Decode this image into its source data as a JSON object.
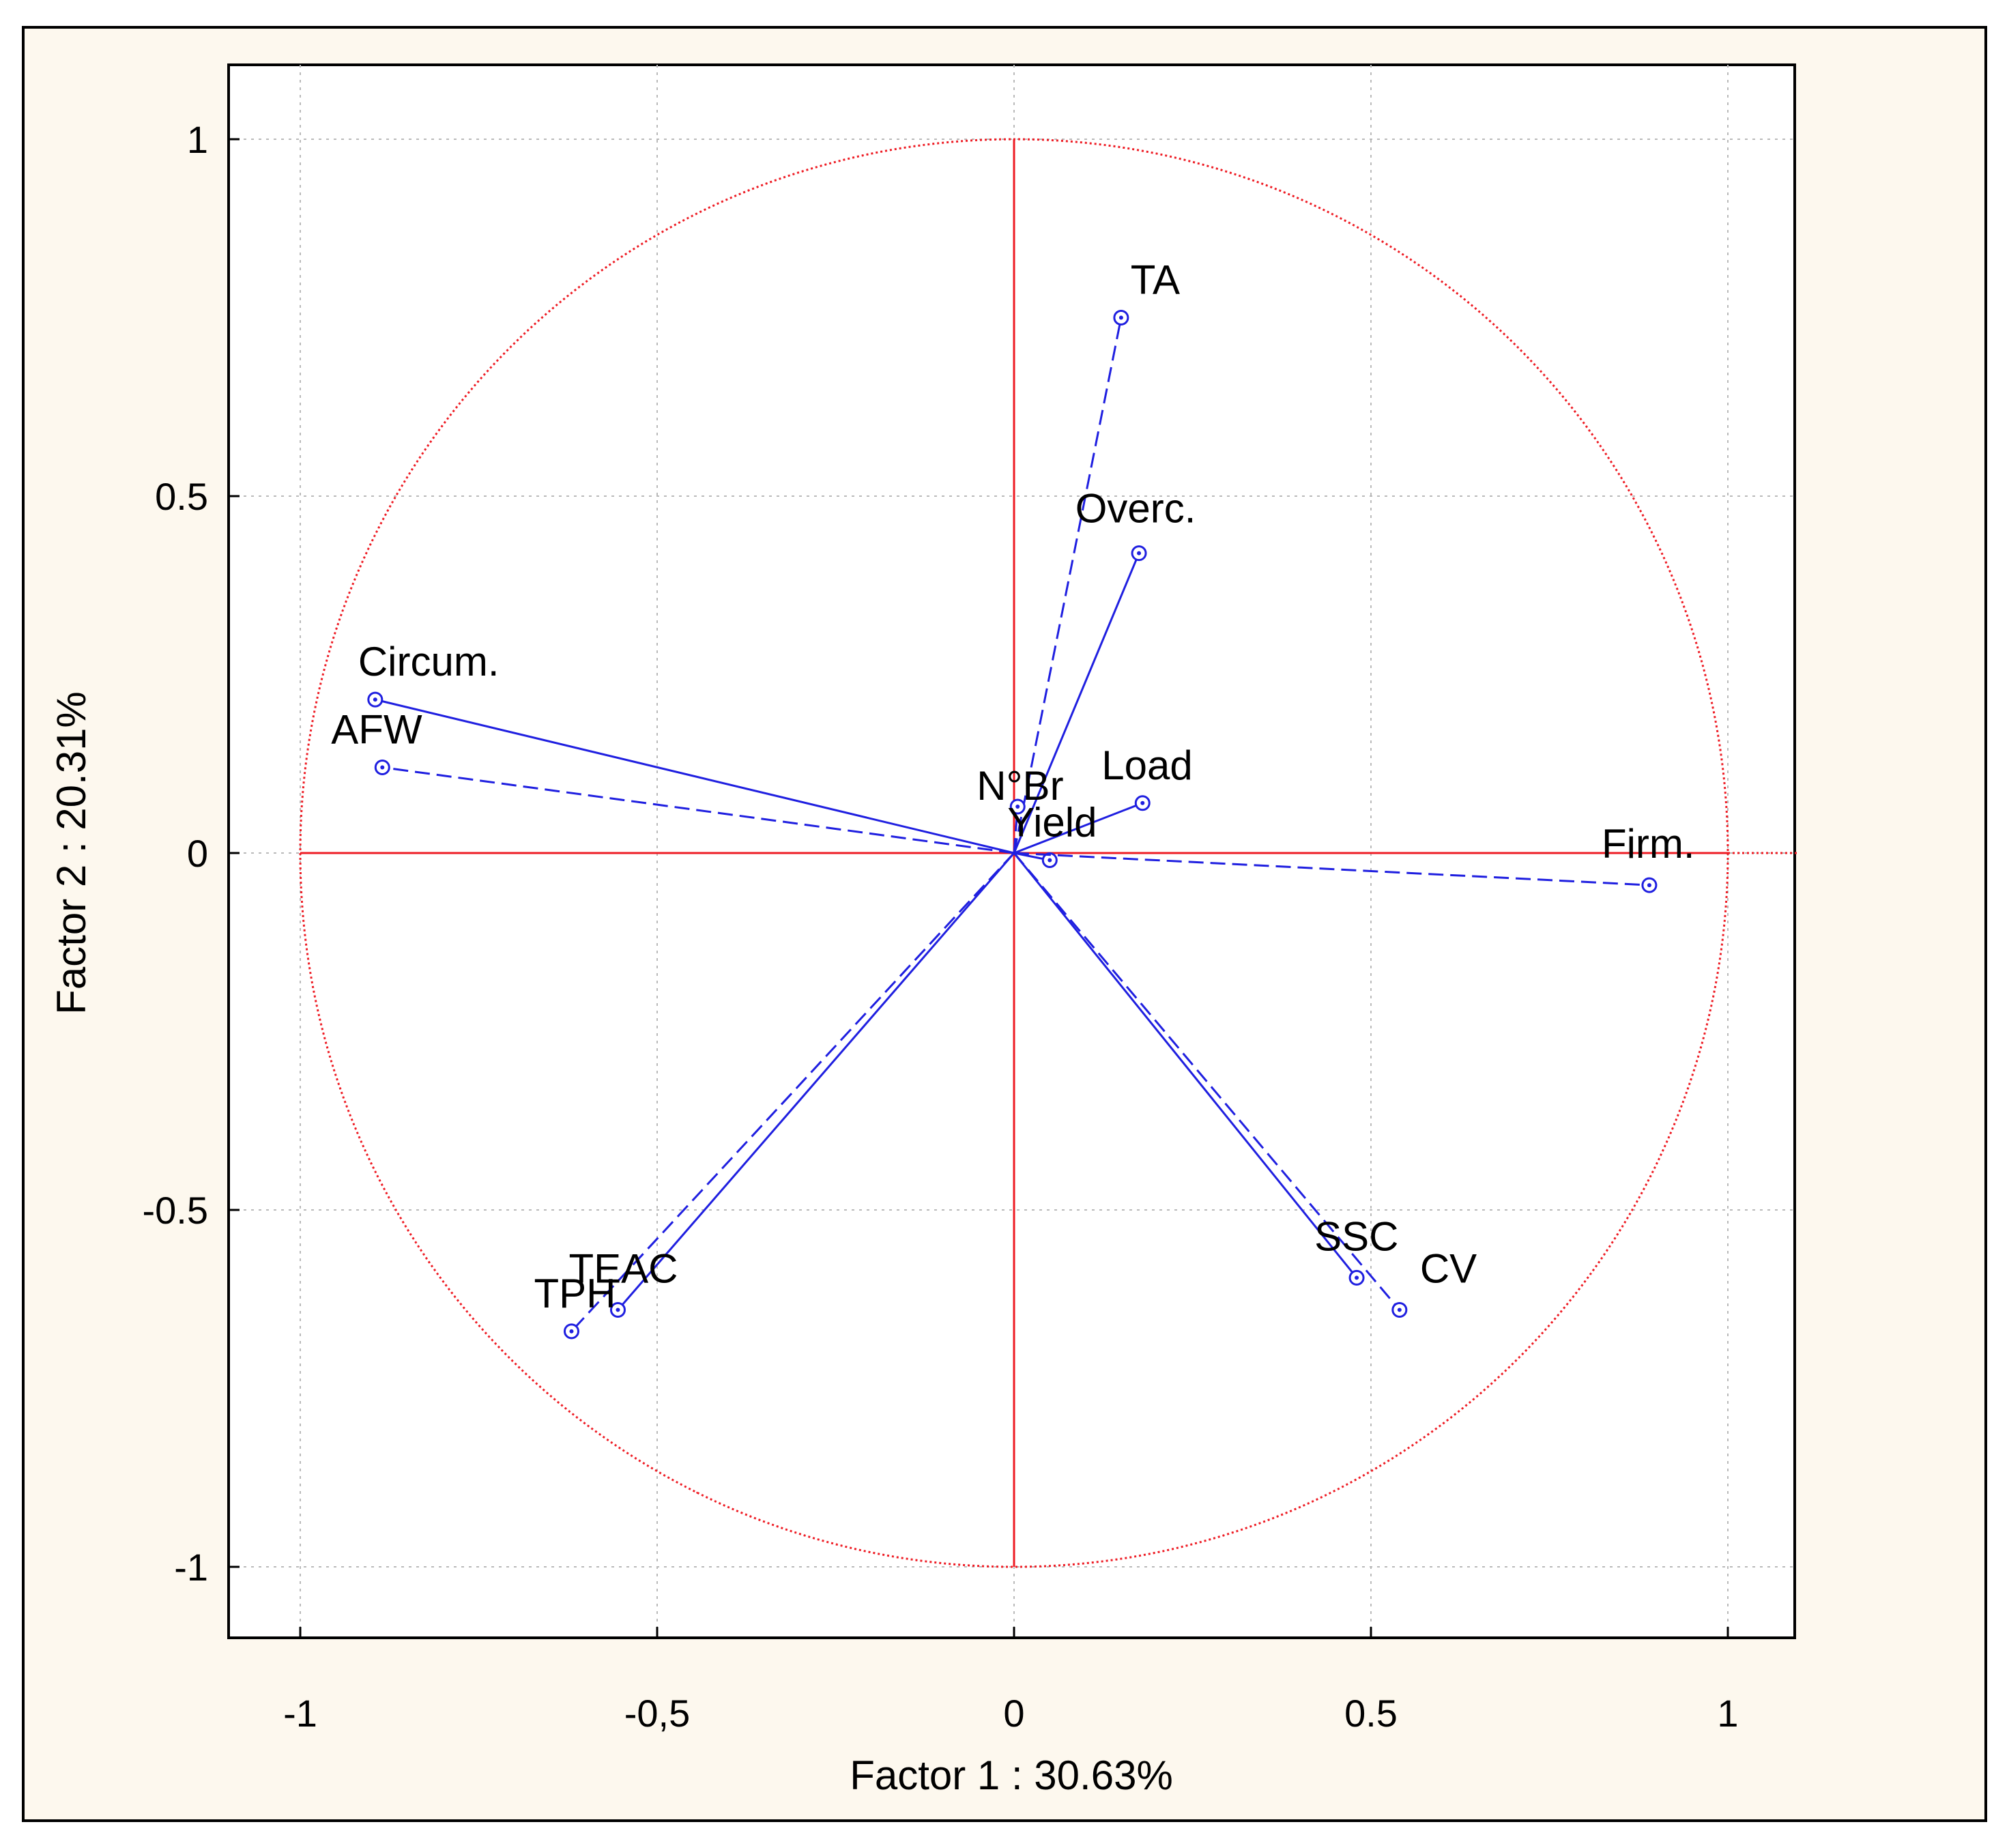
{
  "chart_data": {
    "type": "scatter",
    "title": "",
    "xlabel": "Factor 1 : 30.63%",
    "ylabel": "Factor 2 : 20.31%",
    "xlim": [
      -1.1,
      1.1
    ],
    "ylim": [
      -1.1,
      1.1
    ],
    "x_tick_labels": [
      "-1",
      "-0,5",
      "0",
      "0.5",
      "1"
    ],
    "x_tick_values": [
      -1,
      -0.5,
      0,
      0.5,
      1
    ],
    "y_tick_labels": [
      "1",
      "0.5",
      "0",
      "-0.5",
      "-1"
    ],
    "y_tick_values": [
      1,
      0.5,
      0,
      -0.5,
      -1
    ],
    "grid": true,
    "unit_circle_radius": 1,
    "series": [
      {
        "label": "TA",
        "x": 0.15,
        "y": 0.75,
        "line": "dashed"
      },
      {
        "label": "Overc.",
        "x": 0.175,
        "y": 0.42,
        "line": "solid"
      },
      {
        "label": "Circum.",
        "x": -0.895,
        "y": 0.215,
        "line": "solid"
      },
      {
        "label": "AFW",
        "x": -0.885,
        "y": 0.12,
        "line": "dashed"
      },
      {
        "label": "N°Br",
        "x": 0.005,
        "y": 0.065,
        "line": "dashed"
      },
      {
        "label": "Load",
        "x": 0.18,
        "y": 0.07,
        "line": "solid"
      },
      {
        "label": "Yield",
        "x": 0.05,
        "y": -0.01,
        "line": "solid"
      },
      {
        "label": "Firm.",
        "x": 0.89,
        "y": -0.045,
        "line": "dashed"
      },
      {
        "label": "TEAC",
        "x": -0.555,
        "y": -0.64,
        "line": "solid"
      },
      {
        "label": "TPH",
        "x": -0.62,
        "y": -0.67,
        "line": "dashed"
      },
      {
        "label": "SSC",
        "x": 0.48,
        "y": -0.595,
        "line": "solid"
      },
      {
        "label": "CV",
        "x": 0.54,
        "y": -0.64,
        "line": "dashed"
      }
    ]
  },
  "colors": {
    "circle_and_axes": "#ee1c24",
    "vectors": "#1f1fe0",
    "grid": "#b9b9b9",
    "plot_background": "#ffffff",
    "panel_background": "#fdf8ee"
  }
}
